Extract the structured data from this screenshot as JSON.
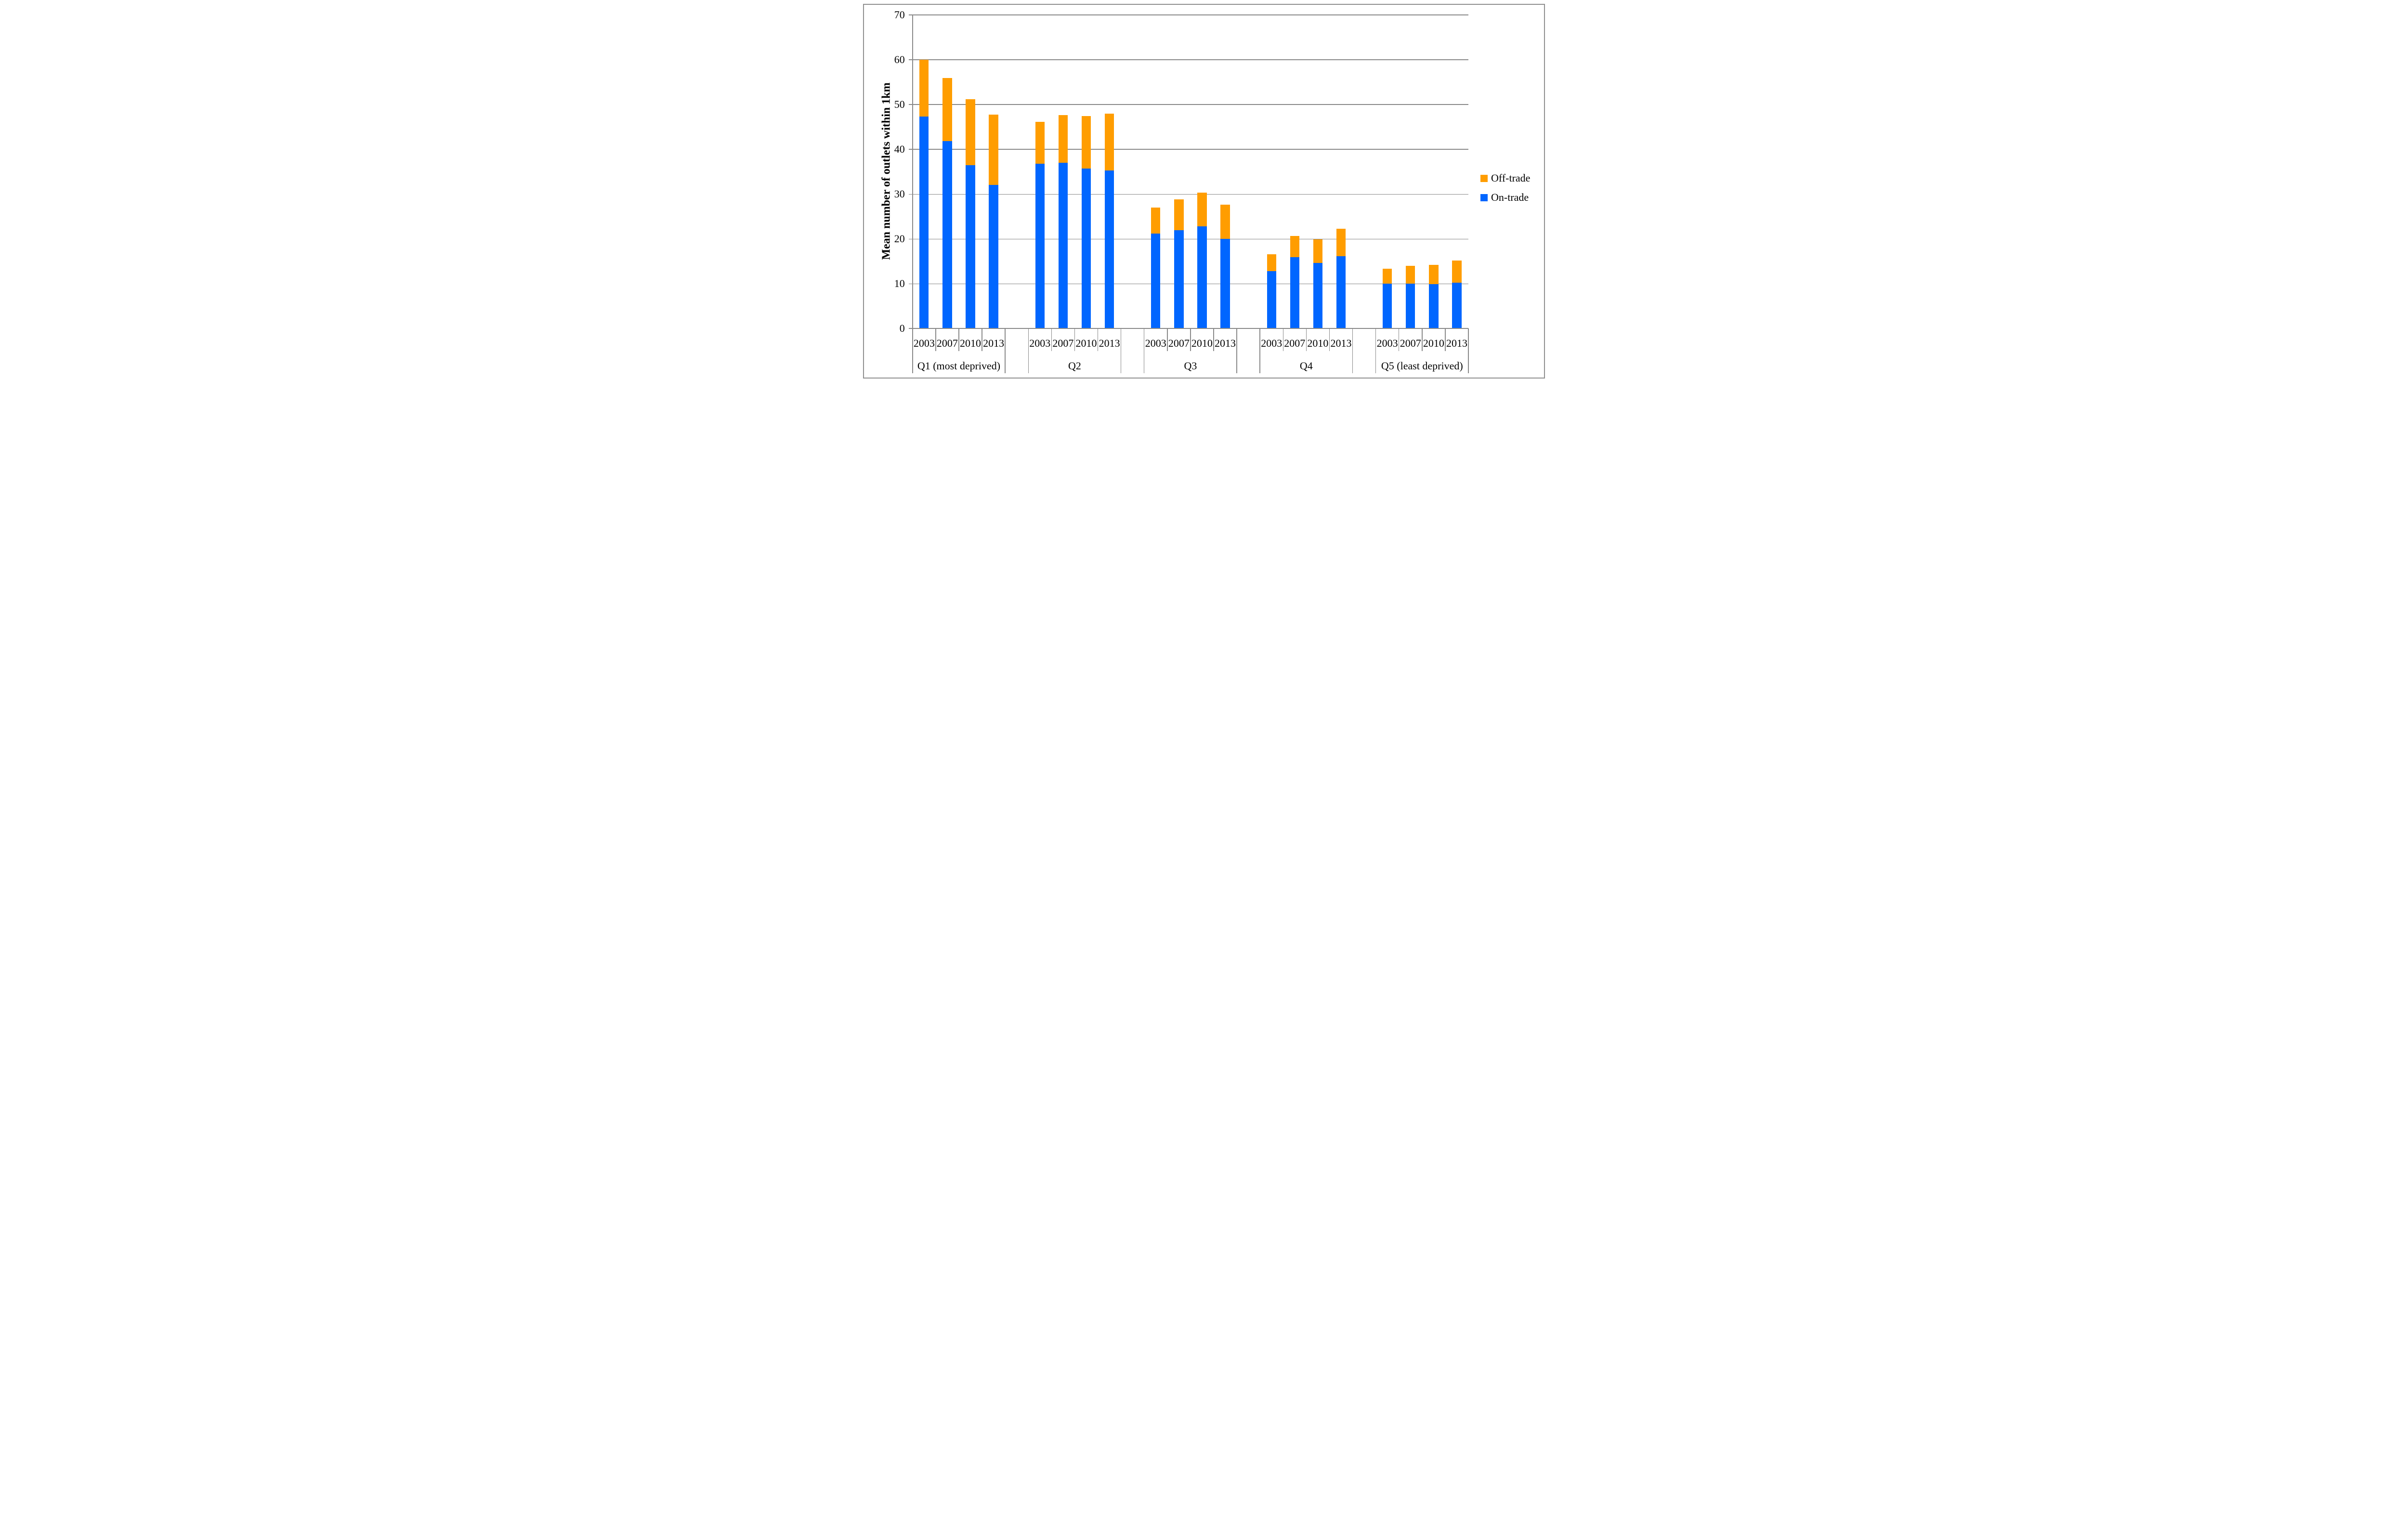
{
  "figure": {
    "background": "#ffffff",
    "border_color": "#8f8f8f",
    "gridline_color": "#8a8a8a",
    "axis_color": "#8a8a8a"
  },
  "chart_data": {
    "type": "bar",
    "stacked": true,
    "title": "",
    "ylabel": "Mean number of outlets within 1km",
    "xlabel": "",
    "ylim": [
      0,
      70
    ],
    "yticks": [
      0,
      10,
      20,
      30,
      40,
      50,
      60,
      70
    ],
    "grid": true,
    "legend_position": "right",
    "groups": [
      "Q1 (most deprived)",
      "Q2",
      "Q3",
      "Q4",
      "Q5 (least deprived)"
    ],
    "years": [
      "2003",
      "2007",
      "2010",
      "2013"
    ],
    "series": [
      {
        "name": "Off-trade",
        "color": "#FF9D00",
        "values": [
          [
            12.7,
            14.0,
            14.7,
            15.7
          ],
          [
            9.4,
            10.7,
            11.7,
            12.7
          ],
          [
            5.8,
            6.8,
            7.5,
            7.7
          ],
          [
            3.8,
            4.8,
            5.2,
            6.1
          ],
          [
            3.4,
            4.0,
            4.3,
            5.0
          ]
        ]
      },
      {
        "name": "On-trade",
        "color": "#0066FF",
        "values": [
          [
            47.3,
            41.9,
            36.5,
            32.1
          ],
          [
            36.8,
            37.0,
            35.7,
            35.3
          ],
          [
            21.2,
            22.0,
            22.8,
            20.0
          ],
          [
            12.8,
            15.9,
            14.7,
            16.2
          ],
          [
            10.0,
            10.0,
            9.9,
            10.2
          ]
        ]
      }
    ]
  }
}
